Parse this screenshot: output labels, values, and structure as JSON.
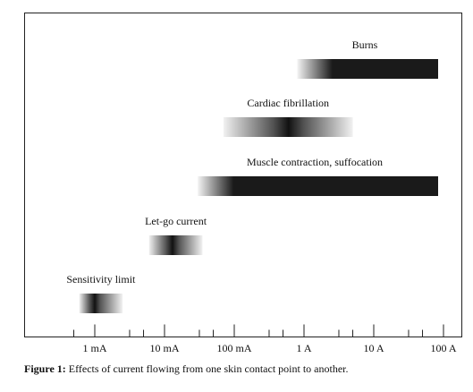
{
  "chart_data": {
    "type": "bar",
    "xscale": "log",
    "xlim": [
      "0.3 mA",
      "140 A"
    ],
    "x_ticks": [
      "1 mA",
      "10 mA",
      "100 mA",
      "1 A",
      "10 A",
      "100 A"
    ],
    "grid": false,
    "legend": "none",
    "series": [
      {
        "label": "Burns",
        "range": [
          "0.8 A",
          "140 A"
        ],
        "fade": "left"
      },
      {
        "label": "Cardiac fibrillation",
        "range": [
          "70 mA",
          "5 A"
        ],
        "fade": "both",
        "peak": "0.6 A"
      },
      {
        "label": "Muscle contraction, suffocation",
        "range": [
          "30 mA",
          "140 A"
        ],
        "fade": "left"
      },
      {
        "label": "Let-go current",
        "range": [
          "6 mA",
          "35 mA"
        ],
        "fade": "both",
        "peak": "13 mA"
      },
      {
        "label": "Sensitivity limit",
        "range": [
          "0.6 mA",
          "2.5 mA"
        ],
        "fade": "both",
        "peak": "1 mA"
      }
    ]
  },
  "caption": {
    "label": "Figure 1:",
    "text": " Effects of current flowing from one skin contact point to another."
  }
}
